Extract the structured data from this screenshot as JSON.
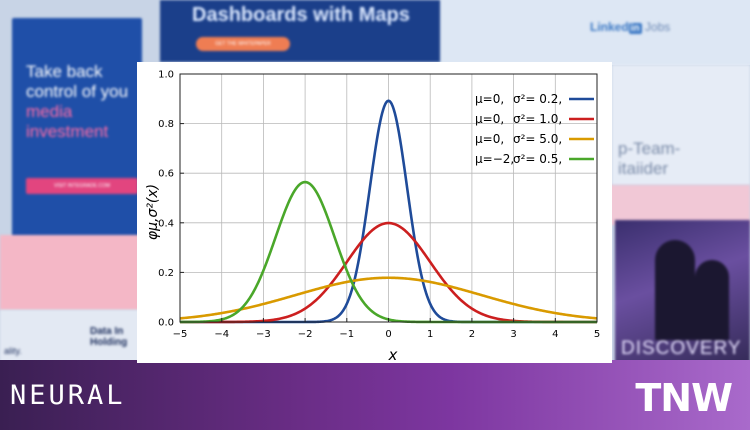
{
  "background": {
    "ad_left": {
      "line1": "Take back",
      "line2": "control of you",
      "line3": "media",
      "line4": "investment",
      "button": "VISIT INTEGRADE.COM"
    },
    "ad_top": {
      "title": "Dashboards with Maps",
      "button": "GET THE WHITEPAPER"
    },
    "linkedin": {
      "brand": "Linked",
      "in": "in",
      "jobs": "Jobs"
    },
    "right_panel": {
      "line1": "p-Team-",
      "line2": "itaiider"
    },
    "lower_left": {
      "line1": "Data In",
      "line2": "Holding",
      "line3": "ality."
    },
    "discovery": {
      "title": "DISCOVERY"
    },
    "brand_left": "NEURAL",
    "brand_right": "TNW"
  },
  "chart_data": {
    "type": "line",
    "xlabel": "x",
    "ylabel": "φμ,σ²(x)",
    "xlim": [
      -5,
      5
    ],
    "ylim": [
      0,
      1.0
    ],
    "xticks": [
      "−5",
      "−4",
      "−3",
      "−2",
      "−1",
      "0",
      "1",
      "2",
      "3",
      "4",
      "5"
    ],
    "yticks": [
      "0.0",
      "0.2",
      "0.4",
      "0.6",
      "0.8",
      "1.0"
    ],
    "grid": true,
    "legend_position": "top-right",
    "series": [
      {
        "mu_label": "μ=0,",
        "var_label": "σ²= 0.2,",
        "mu": 0,
        "variance": 0.2,
        "color": "#1f4b99"
      },
      {
        "mu_label": "μ=0,",
        "var_label": "σ²= 1.0,",
        "mu": 0,
        "variance": 1.0,
        "color": "#cc1f1f"
      },
      {
        "mu_label": "μ=0,",
        "var_label": "σ²= 5.0,",
        "mu": 0,
        "variance": 5.0,
        "color": "#d99a00"
      },
      {
        "mu_label": "μ=−2,",
        "var_label": "σ²= 0.5,",
        "mu": -2,
        "variance": 0.5,
        "color": "#4aa72a"
      }
    ]
  }
}
